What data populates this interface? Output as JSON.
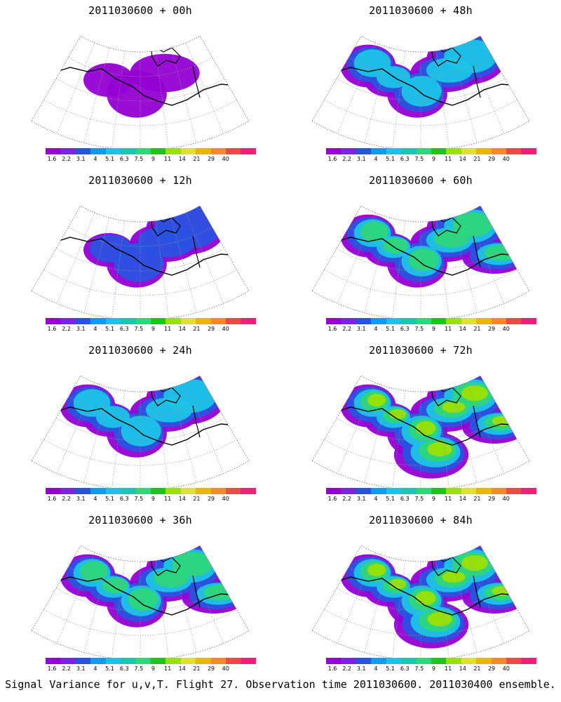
{
  "panels": [
    {
      "title": "2011030600 + 00h"
    },
    {
      "title": "2011030600 + 48h"
    },
    {
      "title": "2011030600 + 12h"
    },
    {
      "title": "2011030600 + 60h"
    },
    {
      "title": "2011030600 + 24h"
    },
    {
      "title": "2011030600 + 72h"
    },
    {
      "title": "2011030600 + 36h"
    },
    {
      "title": "2011030600 + 84h"
    }
  ],
  "colorbar": {
    "labels": [
      "1.6",
      "2.2",
      "3.1",
      "4",
      "5.1",
      "6.3",
      "7.5",
      "9",
      "11",
      "14",
      "21",
      "29",
      "40"
    ],
    "colors": [
      "#9400d3",
      "#7a22e6",
      "#2a52e0",
      "#0f9cf0",
      "#1bc3e6",
      "#14c9b0",
      "#2bd87a",
      "#1cc41c",
      "#9ae000",
      "#e0e030",
      "#e8b800",
      "#f08a2a",
      "#f04848",
      "#f0207a"
    ]
  },
  "caption": "Signal Variance for u,v,T. Flight 27. Observation time 2011030600. 2011030400 ensemble."
}
